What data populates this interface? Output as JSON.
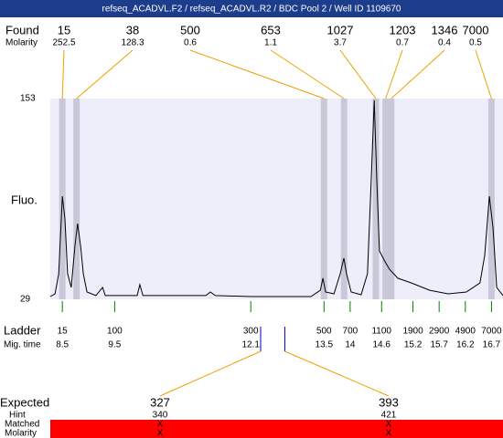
{
  "title": "refseq_ACADVL.F2 / refseq_ACADVL.R2 / BDC Pool 2 / Well ID 1109670",
  "found": {
    "label": "Found",
    "sizes": [
      15,
      38,
      500,
      653,
      1027,
      1203,
      1346,
      7000
    ],
    "molarity_label": "Molarity",
    "molarity": [
      252.5,
      128.3,
      0.6,
      1.1,
      3.7,
      0.7,
      0.4,
      0.5
    ]
  },
  "ladder": {
    "label": "Ladder",
    "time_label": "Mig. time",
    "sizes": [
      15,
      100,
      300,
      500,
      700,
      1100,
      1900,
      2900,
      4900,
      7000
    ],
    "times": [
      8.5,
      9.5,
      12.1,
      13.5,
      14,
      14.6,
      15.2,
      15.7,
      16.2,
      16.7
    ]
  },
  "expected": {
    "label": "Expected",
    "sizes": [
      327,
      393
    ],
    "hint_label": "Hint",
    "hints": [
      340,
      421
    ],
    "matched_label": "Matched",
    "matched": [
      "X",
      "X"
    ],
    "molarity_label": "Molarity",
    "molarity": [
      "X",
      "X"
    ]
  },
  "chart_data": {
    "type": "line",
    "ylabel": "Fluo.",
    "ylim": [
      29,
      153
    ],
    "yticks": [
      29,
      153
    ],
    "xlim": [
      8.27,
      16.92
    ],
    "color": "#000000",
    "x": [
      8.27,
      8.36,
      8.43,
      8.5,
      8.55,
      8.6,
      8.67,
      8.74,
      8.79,
      8.85,
      8.9,
      8.97,
      9.14,
      9.27,
      9.32,
      9.93,
      9.98,
      10.04,
      11.24,
      11.33,
      11.42,
      12.11,
      13.25,
      13.43,
      13.48,
      13.53,
      13.69,
      13.81,
      13.88,
      13.93,
      14.02,
      14.21,
      14.33,
      14.4,
      14.46,
      14.51,
      14.56,
      14.65,
      14.75,
      14.91,
      15.17,
      15.52,
      15.87,
      16.22,
      16.48,
      16.57,
      16.66,
      16.73,
      16.8,
      16.92
    ],
    "values": [
      30.7,
      32.4,
      44.8,
      92.7,
      78.6,
      44.8,
      36.3,
      61.7,
      75.8,
      61.7,
      44.8,
      33.5,
      31.3,
      36.3,
      31.3,
      31.3,
      38,
      31.3,
      31.3,
      33.5,
      31.3,
      30.7,
      30.7,
      34.6,
      42,
      33.5,
      32.4,
      44.8,
      54.4,
      44.8,
      33.5,
      31.8,
      44.8,
      101.1,
      152,
      101.1,
      58.9,
      53.2,
      47.6,
      42,
      39.1,
      34.6,
      32.4,
      33.5,
      39.1,
      56.1,
      92.7,
      72.9,
      36.3,
      31.3
    ]
  }
}
